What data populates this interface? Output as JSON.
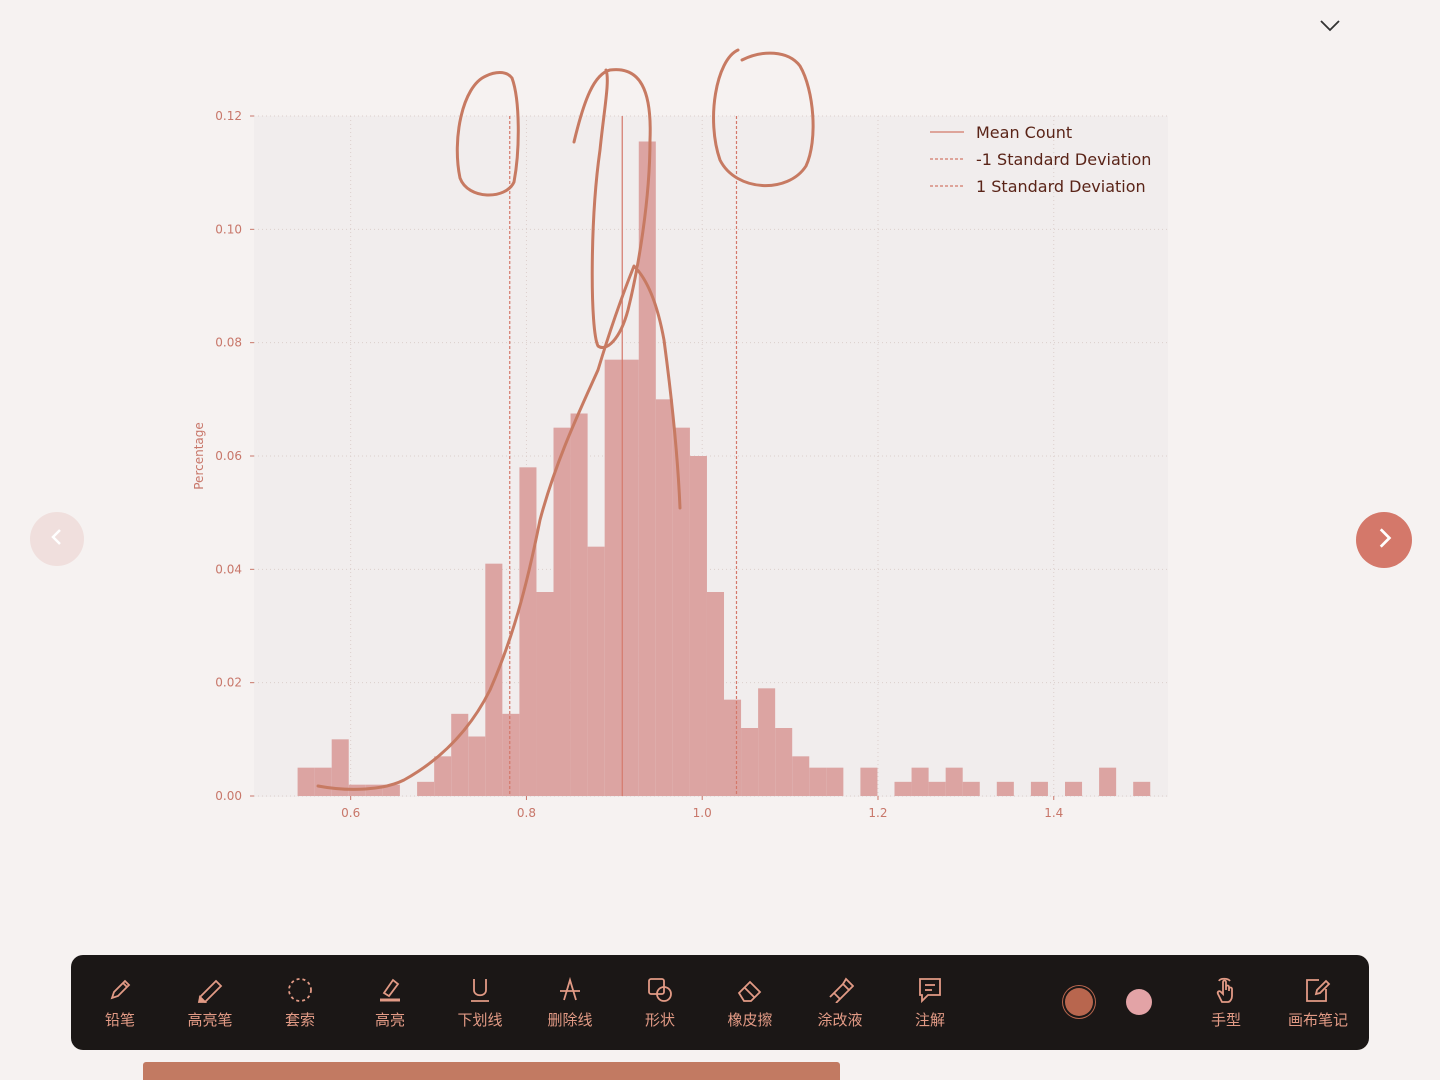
{
  "chart_data": {
    "type": "bar",
    "ylabel": "Percentage",
    "xlabel": "",
    "xlim": [
      0.49,
      1.53
    ],
    "ylim": [
      0.0,
      0.12
    ],
    "x_ticks": [
      0.6,
      0.8,
      1.0,
      1.2,
      1.4
    ],
    "x_tick_labels": [
      "0.6",
      "0.8",
      "1.0",
      "1.2",
      "1.4"
    ],
    "y_ticks": [
      0.0,
      0.02,
      0.04,
      0.06,
      0.08,
      0.1,
      0.12
    ],
    "y_tick_labels": [
      "0.00",
      "0.02",
      "0.04",
      "0.06",
      "0.08",
      "0.10",
      "0.12"
    ],
    "grid": true,
    "legend_position": "top-right",
    "bar_color": "#dca4a2",
    "bins": [
      [
        0.5396,
        0.559,
        0.005
      ],
      [
        0.559,
        0.5784,
        0.005
      ],
      [
        0.5784,
        0.5978,
        0.01
      ],
      [
        0.5978,
        0.6172,
        0.002
      ],
      [
        0.6172,
        0.6366,
        0.002
      ],
      [
        0.6366,
        0.656,
        0.002
      ],
      [
        0.6756,
        0.695,
        0.0025
      ],
      [
        0.695,
        0.7144,
        0.007
      ],
      [
        0.7144,
        0.7338,
        0.0145
      ],
      [
        0.7338,
        0.7532,
        0.0105
      ],
      [
        0.7532,
        0.7726,
        0.041
      ],
      [
        0.7726,
        0.792,
        0.0145
      ],
      [
        0.792,
        0.8114,
        0.058
      ],
      [
        0.8114,
        0.8308,
        0.036
      ],
      [
        0.8308,
        0.8502,
        0.065
      ],
      [
        0.8502,
        0.8696,
        0.0675
      ],
      [
        0.8696,
        0.889,
        0.044
      ],
      [
        0.889,
        0.9084,
        0.077
      ],
      [
        0.9084,
        0.9278,
        0.077
      ],
      [
        0.9278,
        0.9472,
        0.1155
      ],
      [
        0.9472,
        0.9666,
        0.07
      ],
      [
        0.9666,
        0.986,
        0.065
      ],
      [
        0.986,
        1.0054,
        0.06
      ],
      [
        1.0054,
        1.0248,
        0.036
      ],
      [
        1.0248,
        1.0442,
        0.017
      ],
      [
        1.0442,
        1.0636,
        0.012
      ],
      [
        1.0636,
        1.083,
        0.019
      ],
      [
        1.083,
        1.1024,
        0.012
      ],
      [
        1.1024,
        1.1218,
        0.007
      ],
      [
        1.1218,
        1.1412,
        0.005
      ],
      [
        1.1412,
        1.1606,
        0.005
      ],
      [
        1.18,
        1.1994,
        0.005
      ],
      [
        1.2188,
        1.2382,
        0.0025
      ],
      [
        1.2382,
        1.2576,
        0.005
      ],
      [
        1.2576,
        1.277,
        0.0025
      ],
      [
        1.277,
        1.2964,
        0.005
      ],
      [
        1.2964,
        1.3158,
        0.0025
      ],
      [
        1.3352,
        1.3546,
        0.0025
      ],
      [
        1.374,
        1.3934,
        0.0025
      ],
      [
        1.4128,
        1.4322,
        0.0025
      ],
      [
        1.4516,
        1.471,
        0.005
      ],
      [
        1.4904,
        1.5098,
        0.0025
      ]
    ],
    "lines": [
      {
        "name": "Mean Count",
        "x": 0.909,
        "style": "solid",
        "color": "#d4786a"
      },
      {
        "name": "-1 Standard Deviation",
        "x": 0.781,
        "style": "dashed",
        "color": "#d4786a"
      },
      {
        "name": "1 Standard Deviation",
        "x": 1.039,
        "style": "dashed",
        "color": "#d4786a"
      }
    ],
    "legend": [
      "Mean Count",
      "-1 Standard Deviation",
      "1 Standard Deviation"
    ]
  },
  "annotation_color": "#c77a62",
  "icons": {
    "collapse": "chevron-down-icon",
    "prev": "chevron-left-icon",
    "next": "chevron-right-icon"
  },
  "toolbar": {
    "tools": [
      {
        "label": "铅笔",
        "icon": "pencil-icon"
      },
      {
        "label": "高亮笔",
        "icon": "highlighter-pen-icon"
      },
      {
        "label": "套索",
        "icon": "lasso-icon"
      },
      {
        "label": "高亮",
        "icon": "highlight-icon"
      },
      {
        "label": "下划线",
        "icon": "underline-icon"
      },
      {
        "label": "删除线",
        "icon": "strikethrough-icon"
      },
      {
        "label": "形状",
        "icon": "shape-icon"
      },
      {
        "label": "橡皮擦",
        "icon": "eraser-icon"
      },
      {
        "label": "涂改液",
        "icon": "correction-fluid-icon"
      },
      {
        "label": "注解",
        "icon": "comment-icon"
      }
    ],
    "right_tools": [
      {
        "label": "手型",
        "icon": "hand-icon"
      },
      {
        "label": "画布笔记",
        "icon": "canvas-note-icon"
      }
    ],
    "swatches": [
      "#b8664e",
      "#e3a3a6"
    ],
    "label_color": "#e29a85",
    "background": "#1b1716"
  }
}
